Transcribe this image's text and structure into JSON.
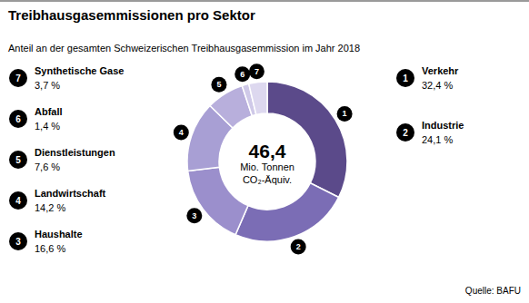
{
  "chart_data": {
    "type": "donut",
    "title": "Treibhausgasemmissionen pro Sektor",
    "subtitle": "Anteil an der gesamten Schweizerischen Treibhausgasemmission im Jahr 2018",
    "center_text": [
      "46,4",
      "Mio. Tonnen",
      "CO₂-Äquiv."
    ],
    "source": "Quelle: BAFU",
    "categories": [
      "Verkehr",
      "Industrie",
      "Haushalte",
      "Landwirtschaft",
      "Dienstleistungen",
      "Abfall",
      "Synthetische Gase"
    ],
    "slice_numbers": [
      1,
      2,
      3,
      4,
      5,
      6,
      7
    ],
    "values": [
      32.4,
      24.1,
      16.6,
      14.2,
      7.6,
      1.4,
      3.7
    ],
    "value_labels": [
      "32,4 %",
      "24,1 %",
      "16,6 %",
      "14,2 %",
      "7,6 %",
      "1,4 %",
      "3,7 %"
    ],
    "colors": [
      "#5b4a8a",
      "#7b6db5",
      "#9b8fcc",
      "#a89fd4",
      "#b8afdc",
      "#cfc9e8",
      "#ddd8ef"
    ]
  }
}
